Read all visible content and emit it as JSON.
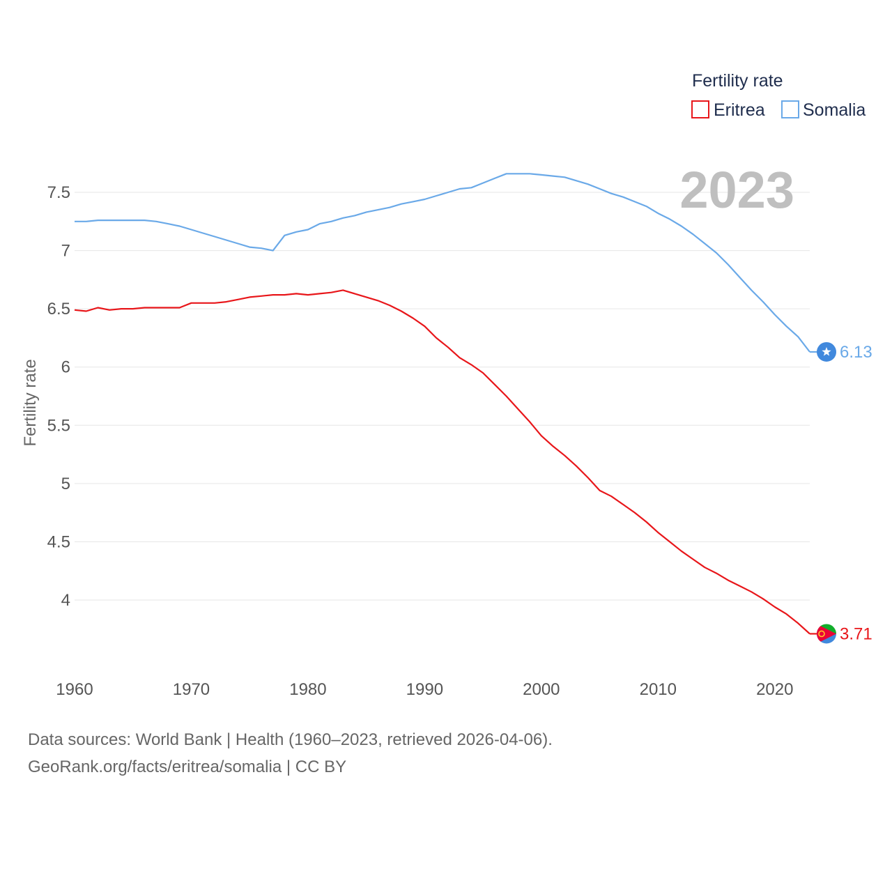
{
  "chart_data": {
    "type": "line",
    "title": "",
    "xlabel": "",
    "ylabel": "Fertility rate",
    "year_label": "2023",
    "xlim": [
      1960,
      2023
    ],
    "ylim": [
      3.5,
      7.85
    ],
    "grid": true,
    "x_ticks": [
      1960,
      1970,
      1980,
      1990,
      2000,
      2010,
      2020
    ],
    "x_tick_labels": [
      "1960",
      "1970",
      "1980",
      "1990",
      "2000",
      "2010",
      "2020"
    ],
    "y_ticks": [
      4,
      4.5,
      5,
      5.5,
      6,
      6.5,
      7,
      7.5
    ],
    "y_tick_labels": [
      "4",
      "4.5",
      "5",
      "5.5",
      "6",
      "6.5",
      "7",
      "7.5"
    ],
    "legend": {
      "title": "Fertility rate",
      "position": "top-right"
    },
    "x": [
      1960,
      1961,
      1962,
      1963,
      1964,
      1965,
      1966,
      1967,
      1968,
      1969,
      1970,
      1971,
      1972,
      1973,
      1974,
      1975,
      1976,
      1977,
      1978,
      1979,
      1980,
      1981,
      1982,
      1983,
      1984,
      1985,
      1986,
      1987,
      1988,
      1989,
      1990,
      1991,
      1992,
      1993,
      1994,
      1995,
      1996,
      1997,
      1998,
      1999,
      2000,
      2001,
      2002,
      2003,
      2004,
      2005,
      2006,
      2007,
      2008,
      2009,
      2010,
      2011,
      2012,
      2013,
      2014,
      2015,
      2016,
      2017,
      2018,
      2019,
      2020,
      2021,
      2022,
      2023
    ],
    "series": [
      {
        "name": "Eritrea",
        "color": "#e8161a",
        "end_label": "3.71",
        "marker_icon": "eritrea-flag-icon",
        "values": [
          6.49,
          6.48,
          6.51,
          6.49,
          6.5,
          6.5,
          6.51,
          6.51,
          6.51,
          6.51,
          6.55,
          6.55,
          6.55,
          6.56,
          6.58,
          6.6,
          6.61,
          6.62,
          6.62,
          6.63,
          6.62,
          6.63,
          6.64,
          6.66,
          6.63,
          6.6,
          6.57,
          6.53,
          6.48,
          6.42,
          6.35,
          6.25,
          6.17,
          6.08,
          6.02,
          5.95,
          5.85,
          5.75,
          5.64,
          5.53,
          5.41,
          5.32,
          5.24,
          5.15,
          5.05,
          4.94,
          4.89,
          4.82,
          4.75,
          4.67,
          4.58,
          4.5,
          4.42,
          4.35,
          4.28,
          4.23,
          4.17,
          4.12,
          4.07,
          4.01,
          3.94,
          3.88,
          3.8,
          3.71
        ]
      },
      {
        "name": "Somalia",
        "color": "#6aa9e8",
        "end_label": "6.13",
        "marker_icon": "somalia-flag-icon",
        "values": [
          7.25,
          7.25,
          7.26,
          7.26,
          7.26,
          7.26,
          7.26,
          7.25,
          7.23,
          7.21,
          7.18,
          7.15,
          7.12,
          7.09,
          7.06,
          7.03,
          7.02,
          7.0,
          7.13,
          7.16,
          7.18,
          7.23,
          7.25,
          7.28,
          7.3,
          7.33,
          7.35,
          7.37,
          7.4,
          7.42,
          7.44,
          7.47,
          7.5,
          7.53,
          7.54,
          7.58,
          7.62,
          7.66,
          7.66,
          7.66,
          7.65,
          7.64,
          7.63,
          7.6,
          7.57,
          7.53,
          7.49,
          7.46,
          7.42,
          7.38,
          7.32,
          7.27,
          7.21,
          7.14,
          7.06,
          6.98,
          6.88,
          6.77,
          6.66,
          6.56,
          6.45,
          6.35,
          6.26,
          6.13
        ]
      }
    ]
  },
  "footer": {
    "source_line": "Data sources: World Bank | Health (1960–2023, retrieved 2026-04-06).",
    "link_line": "GeoRank.org/facts/eritrea/somalia | CC BY"
  }
}
